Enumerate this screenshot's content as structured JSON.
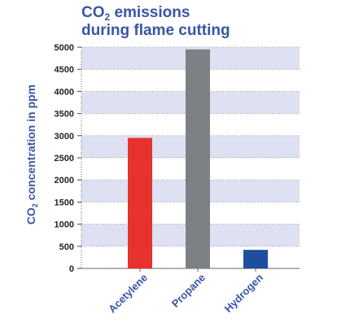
{
  "chart_data": {
    "type": "bar",
    "title": {
      "line1_pre": "CO",
      "line1_sub": "2",
      "line1_post": " emissions",
      "line2": "during flame cutting"
    },
    "ylabel": {
      "pre": "CO",
      "sub": "2",
      "post": " concentration in ppm"
    },
    "categories": [
      "Acetylene",
      "Propane",
      "Hydrogen"
    ],
    "values": [
      2950,
      4950,
      420
    ],
    "colors": [
      "#e8322e",
      "#7d8186",
      "#1f4e9c"
    ],
    "ylim": [
      0,
      5000
    ],
    "yticks": [
      0,
      500,
      1000,
      1500,
      2000,
      2500,
      3000,
      3500,
      4000,
      4500,
      5000
    ],
    "band_color": "#dde1f1",
    "grid": "dotted"
  }
}
